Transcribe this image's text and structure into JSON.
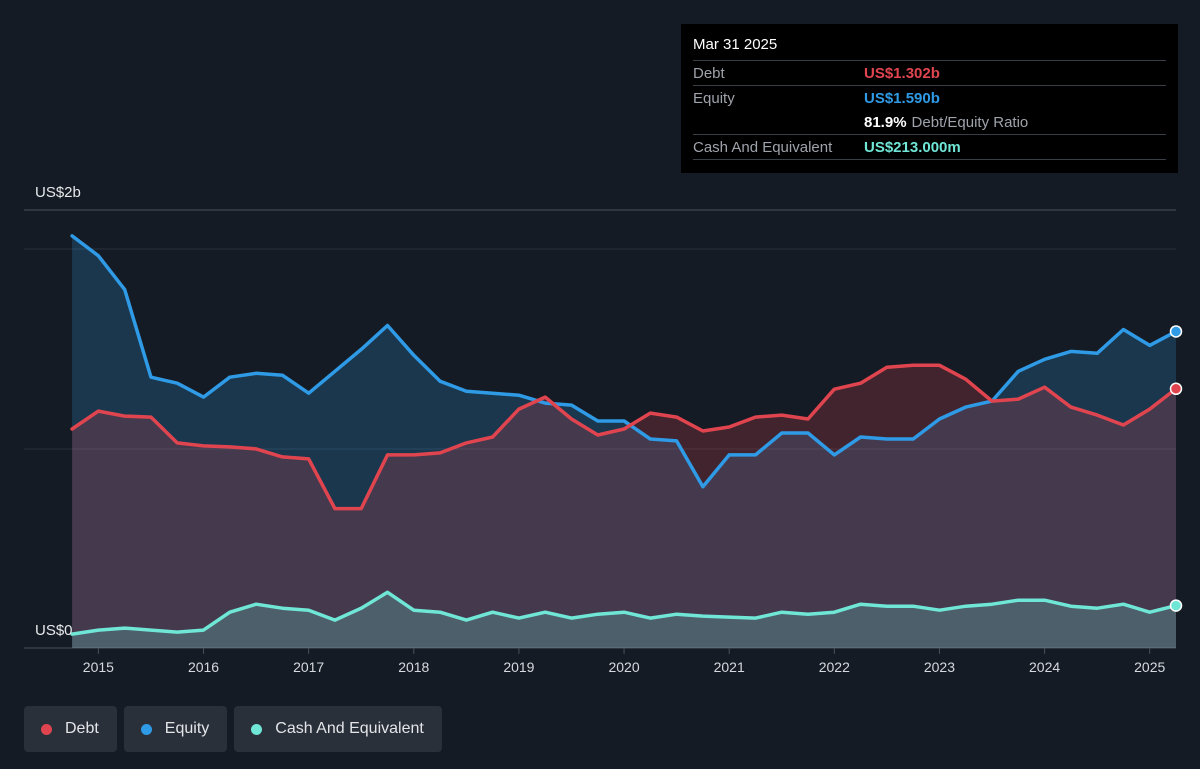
{
  "tooltip": {
    "date": "Mar 31 2025",
    "debt_label": "Debt",
    "debt_value": "US$1.302b",
    "equity_label": "Equity",
    "equity_value": "US$1.590b",
    "ratio_value": "81.9%",
    "ratio_label": "Debt/Equity Ratio",
    "cash_label": "Cash And Equivalent",
    "cash_value": "US$213.000m"
  },
  "legend": {
    "debt_label": "Debt",
    "equity_label": "Equity",
    "cash_label": "Cash And Equivalent"
  },
  "colors": {
    "debt": "#e0454f",
    "equity": "#2f9ae5",
    "cash": "#6fe6d6"
  },
  "chart_data": {
    "type": "area",
    "ylabel_top": "US$2b",
    "ylabel_bottom": "US$0",
    "ylim": [
      0,
      2.2
    ],
    "xlim": [
      2014.73,
      2025.25
    ],
    "x_ticks": [
      "2015",
      "2016",
      "2017",
      "2018",
      "2019",
      "2020",
      "2021",
      "2022",
      "2023",
      "2024",
      "2025"
    ],
    "grid": true,
    "legend_position": "bottom-left",
    "series": [
      {
        "name": "Debt",
        "x": [
          2014.75,
          2015.0,
          2015.25,
          2015.5,
          2015.75,
          2016.0,
          2016.25,
          2016.5,
          2016.75,
          2017.0,
          2017.25,
          2017.5,
          2017.75,
          2018.0,
          2018.25,
          2018.5,
          2018.75,
          2019.0,
          2019.25,
          2019.5,
          2019.75,
          2020.0,
          2020.25,
          2020.5,
          2020.75,
          2021.0,
          2021.25,
          2021.5,
          2021.75,
          2022.0,
          2022.25,
          2022.5,
          2022.75,
          2023.0,
          2023.25,
          2023.5,
          2023.75,
          2024.0,
          2024.25,
          2024.5,
          2024.75,
          2025.0,
          2025.25
        ],
        "values": [
          1.1,
          1.19,
          1.165,
          1.16,
          1.03,
          1.015,
          1.01,
          1.0,
          0.96,
          0.95,
          0.7,
          0.7,
          0.97,
          0.97,
          0.98,
          1.03,
          1.06,
          1.2,
          1.26,
          1.15,
          1.07,
          1.1,
          1.18,
          1.16,
          1.09,
          1.11,
          1.16,
          1.17,
          1.15,
          1.3,
          1.33,
          1.41,
          1.42,
          1.42,
          1.35,
          1.24,
          1.25,
          1.31,
          1.21,
          1.17,
          1.12,
          1.2,
          1.302
        ]
      },
      {
        "name": "Equity",
        "x": [
          2014.75,
          2015.0,
          2015.25,
          2015.5,
          2015.75,
          2016.0,
          2016.25,
          2016.5,
          2016.75,
          2017.0,
          2017.25,
          2017.5,
          2017.75,
          2018.0,
          2018.25,
          2018.5,
          2018.75,
          2019.0,
          2019.25,
          2019.5,
          2019.75,
          2020.0,
          2020.25,
          2020.5,
          2020.75,
          2021.0,
          2021.25,
          2021.5,
          2021.75,
          2022.0,
          2022.25,
          2022.5,
          2022.75,
          2023.0,
          2023.25,
          2023.5,
          2023.75,
          2024.0,
          2024.25,
          2024.5,
          2024.75,
          2025.0,
          2025.25
        ],
        "values": [
          2.07,
          1.97,
          1.8,
          1.36,
          1.33,
          1.26,
          1.36,
          1.38,
          1.37,
          1.28,
          1.39,
          1.5,
          1.62,
          1.47,
          1.34,
          1.29,
          1.28,
          1.27,
          1.23,
          1.22,
          1.14,
          1.14,
          1.05,
          1.04,
          0.81,
          0.97,
          0.97,
          1.08,
          1.08,
          0.97,
          1.06,
          1.05,
          1.05,
          1.15,
          1.21,
          1.24,
          1.39,
          1.45,
          1.49,
          1.48,
          1.6,
          1.52,
          1.59
        ]
      },
      {
        "name": "Cash And Equivalent",
        "x": [
          2014.75,
          2015.0,
          2015.25,
          2015.5,
          2015.75,
          2016.0,
          2016.25,
          2016.5,
          2016.75,
          2017.0,
          2017.25,
          2017.5,
          2017.75,
          2018.0,
          2018.25,
          2018.5,
          2018.75,
          2019.0,
          2019.25,
          2019.5,
          2019.75,
          2020.0,
          2020.25,
          2020.5,
          2020.75,
          2021.0,
          2021.25,
          2021.5,
          2021.75,
          2022.0,
          2022.25,
          2022.5,
          2022.75,
          2023.0,
          2023.25,
          2023.5,
          2023.75,
          2024.0,
          2024.25,
          2024.5,
          2024.75,
          2025.0,
          2025.25
        ],
        "values": [
          0.07,
          0.09,
          0.1,
          0.09,
          0.08,
          0.09,
          0.18,
          0.22,
          0.2,
          0.19,
          0.14,
          0.2,
          0.28,
          0.19,
          0.18,
          0.14,
          0.18,
          0.15,
          0.18,
          0.15,
          0.17,
          0.18,
          0.15,
          0.17,
          0.16,
          0.155,
          0.15,
          0.18,
          0.17,
          0.18,
          0.22,
          0.21,
          0.21,
          0.19,
          0.21,
          0.22,
          0.24,
          0.24,
          0.21,
          0.2,
          0.22,
          0.18,
          0.213
        ]
      }
    ]
  }
}
